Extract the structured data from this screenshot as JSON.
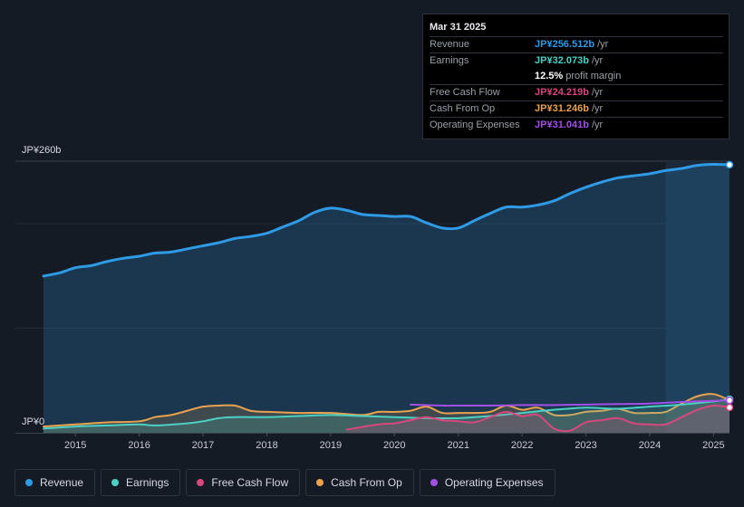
{
  "chart_data": {
    "type": "area",
    "y_unit": "JP¥ billions",
    "ylim": [
      0,
      260
    ],
    "y_labels": {
      "top": "JP¥260b",
      "bottom": "JP¥0"
    },
    "x_ticks": [
      "2015",
      "2016",
      "2017",
      "2018",
      "2019",
      "2020",
      "2021",
      "2022",
      "2023",
      "2024",
      "2025"
    ],
    "x_tick_values": [
      2015,
      2016,
      2017,
      2018,
      2019,
      2020,
      2021,
      2022,
      2023,
      2024,
      2025
    ],
    "xlim": [
      2014.5,
      2025.25
    ],
    "forecast_start": 2024.25,
    "series": [
      {
        "name": "Revenue",
        "color": "#2f9ae6",
        "fill": true,
        "x": [
          2014.5,
          2014.75,
          2015,
          2015.25,
          2015.5,
          2015.75,
          2016,
          2016.25,
          2016.5,
          2016.75,
          2017,
          2017.25,
          2017.5,
          2017.75,
          2018,
          2018.25,
          2018.5,
          2018.75,
          2019,
          2019.25,
          2019.5,
          2019.75,
          2020,
          2020.25,
          2020.5,
          2020.75,
          2021,
          2021.25,
          2021.5,
          2021.75,
          2022,
          2022.25,
          2022.5,
          2022.75,
          2023,
          2023.25,
          2023.5,
          2023.75,
          2024,
          2024.25,
          2024.5,
          2024.75,
          2025,
          2025.25
        ],
        "values": [
          150,
          153,
          158,
          160,
          164,
          167,
          169,
          172,
          173,
          176,
          179,
          182,
          186,
          188,
          191,
          197,
          203,
          211,
          215,
          213,
          209,
          208,
          207,
          207,
          201,
          196,
          196,
          203,
          210,
          216,
          216,
          218,
          222,
          229,
          235,
          240,
          244,
          246,
          248,
          251,
          253,
          256,
          257,
          256.512
        ]
      },
      {
        "name": "Earnings",
        "color": "#4dd0c4",
        "fill": true,
        "x": [
          2014.5,
          2015,
          2015.5,
          2016,
          2016.25,
          2016.75,
          2017,
          2017.25,
          2017.5,
          2018,
          2018.5,
          2019,
          2019.5,
          2020,
          2020.5,
          2021,
          2021.5,
          2022,
          2022.5,
          2023,
          2023.5,
          2024,
          2024.5,
          2025,
          2025.25
        ],
        "values": [
          4,
          6,
          7,
          8,
          7,
          9,
          11,
          14,
          15,
          15,
          16,
          17,
          16,
          15,
          14,
          14,
          16,
          19,
          22,
          24,
          23,
          25,
          27,
          30,
          32.073
        ]
      },
      {
        "name": "Free Cash Flow",
        "color": "#d8477d",
        "fill": true,
        "x": [
          2019.25,
          2019.75,
          2020,
          2020.25,
          2020.5,
          2020.75,
          2021,
          2021.25,
          2021.5,
          2021.75,
          2022,
          2022.25,
          2022.5,
          2022.75,
          2023,
          2023.25,
          2023.5,
          2023.75,
          2024,
          2024.25,
          2024.5,
          2024.75,
          2025,
          2025.25
        ],
        "values": [
          3,
          8,
          9,
          12,
          15,
          12,
          11,
          10,
          15,
          20,
          16,
          17,
          4,
          2,
          10,
          12,
          14,
          9,
          8,
          8,
          15,
          22,
          26,
          24.219
        ]
      },
      {
        "name": "Cash From Op",
        "color": "#e9a24f",
        "fill": true,
        "x": [
          2014.5,
          2015,
          2015.5,
          2016,
          2016.25,
          2016.5,
          2016.75,
          2017,
          2017.25,
          2017.5,
          2017.75,
          2018,
          2018.5,
          2019,
          2019.5,
          2019.75,
          2020,
          2020.25,
          2020.5,
          2020.75,
          2021,
          2021.25,
          2021.5,
          2021.75,
          2022,
          2022.25,
          2022.5,
          2022.75,
          2023,
          2023.25,
          2023.5,
          2023.75,
          2024,
          2024.25,
          2024.5,
          2024.75,
          2025,
          2025.25
        ],
        "values": [
          6,
          8,
          10,
          11,
          15,
          17,
          21,
          25,
          26,
          26,
          21,
          20,
          19,
          19,
          17,
          20,
          20,
          21,
          25,
          19,
          19,
          19,
          20,
          26,
          22,
          24,
          17,
          17,
          20,
          21,
          23,
          19,
          19,
          20,
          28,
          35,
          37,
          31.246
        ]
      },
      {
        "name": "Operating Expenses",
        "color": "#a24fe6",
        "fill": false,
        "x": [
          2020.25,
          2020.75,
          2021,
          2021.5,
          2022,
          2022.5,
          2023,
          2023.5,
          2024,
          2024.5,
          2025,
          2025.25
        ],
        "values": [
          27,
          26,
          26,
          26,
          26.5,
          26.5,
          27,
          27.5,
          28,
          29.5,
          30.5,
          31.041
        ]
      }
    ]
  },
  "tooltip": {
    "date": "Mar 31 2025",
    "rows": [
      {
        "label": "Revenue",
        "value": "JP¥256.512b",
        "unit": "/yr",
        "color": "#2f9ae6"
      },
      {
        "label": "Earnings",
        "value": "JP¥32.073b",
        "unit": "/yr",
        "color": "#4dd0c4"
      },
      {
        "label": "Free Cash Flow",
        "value": "JP¥24.219b",
        "unit": "/yr",
        "color": "#d8477d"
      },
      {
        "label": "Cash From Op",
        "value": "JP¥31.246b",
        "unit": "/yr",
        "color": "#e9a24f"
      },
      {
        "label": "Operating Expenses",
        "value": "JP¥31.041b",
        "unit": "/yr",
        "color": "#a24fe6"
      }
    ],
    "margin_value": "12.5%",
    "margin_label": "profit margin"
  },
  "legend": [
    {
      "label": "Revenue",
      "color": "#2f9ae6"
    },
    {
      "label": "Earnings",
      "color": "#4dd0c4"
    },
    {
      "label": "Free Cash Flow",
      "color": "#d8477d"
    },
    {
      "label": "Cash From Op",
      "color": "#e9a24f"
    },
    {
      "label": "Operating Expenses",
      "color": "#a24fe6"
    }
  ]
}
